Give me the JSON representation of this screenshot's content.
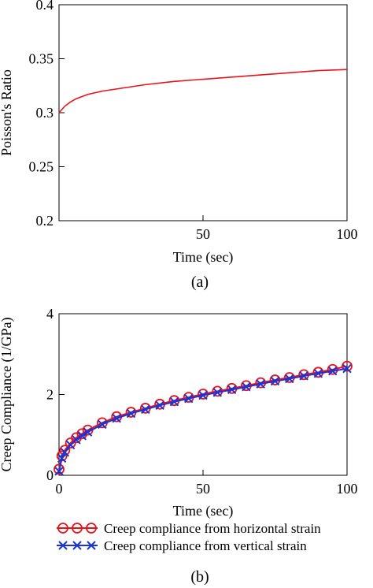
{
  "chart_data": [
    {
      "type": "line",
      "caption": "(a)",
      "xlabel": "Time (sec)",
      "ylabel": "Poisson's Ratio",
      "xlim": [
        0,
        100
      ],
      "ylim": [
        0.2,
        0.4
      ],
      "xticks": [
        {
          "value": 50,
          "label": "50"
        },
        {
          "value": 100,
          "label": "100"
        }
      ],
      "yticks": [
        {
          "value": 0.2,
          "label": "0.2"
        },
        {
          "value": 0.25,
          "label": "0.25"
        },
        {
          "value": 0.3,
          "label": "0.3"
        },
        {
          "value": 0.35,
          "label": "0.35"
        },
        {
          "value": 0.4,
          "label": "0.4"
        }
      ],
      "grid": false,
      "series": [
        {
          "color": "#e8131b",
          "x": [
            0,
            1,
            2,
            3,
            4,
            6,
            8,
            10,
            15,
            20,
            25,
            30,
            40,
            50,
            60,
            70,
            80,
            90,
            100
          ],
          "y": [
            0.3,
            0.303,
            0.306,
            0.308,
            0.31,
            0.313,
            0.315,
            0.317,
            0.32,
            0.322,
            0.324,
            0.326,
            0.329,
            0.331,
            0.333,
            0.335,
            0.337,
            0.339,
            0.34
          ]
        }
      ]
    },
    {
      "type": "line",
      "caption": "(b)",
      "xlabel": "Time (sec)",
      "ylabel": "Creep Compliance (1/GPa)",
      "xlim": [
        0,
        100
      ],
      "ylim": [
        0,
        4
      ],
      "xticks": [
        {
          "value": 0,
          "label": "0"
        },
        {
          "value": 50,
          "label": "50"
        },
        {
          "value": 100,
          "label": "100"
        }
      ],
      "yticks": [
        {
          "value": 0,
          "label": "0"
        },
        {
          "value": 2,
          "label": "2"
        },
        {
          "value": 4,
          "label": "4"
        }
      ],
      "grid": false,
      "legend_position": "bottom",
      "series": [
        {
          "name": "Creep compliance from horizontal strain",
          "color": "#e8131b",
          "marker": "circle",
          "x": [
            0,
            1,
            2,
            4,
            6,
            8,
            10,
            15,
            20,
            25,
            30,
            35,
            40,
            45,
            50,
            55,
            60,
            65,
            70,
            75,
            80,
            85,
            90,
            95,
            100
          ],
          "y": [
            0.15,
            0.48,
            0.62,
            0.8,
            0.93,
            1.03,
            1.12,
            1.3,
            1.45,
            1.56,
            1.66,
            1.76,
            1.85,
            1.93,
            2.01,
            2.08,
            2.15,
            2.22,
            2.29,
            2.36,
            2.42,
            2.49,
            2.55,
            2.62,
            2.7
          ]
        },
        {
          "name": "Creep compliance from vertical strain",
          "color": "#1a33d6",
          "marker": "x",
          "x": [
            0,
            1,
            2,
            4,
            6,
            8,
            10,
            15,
            20,
            25,
            30,
            35,
            40,
            45,
            50,
            55,
            60,
            65,
            70,
            75,
            80,
            85,
            90,
            95,
            100
          ],
          "y": [
            0.1,
            0.42,
            0.57,
            0.75,
            0.88,
            0.98,
            1.07,
            1.26,
            1.41,
            1.53,
            1.63,
            1.73,
            1.82,
            1.9,
            1.98,
            2.05,
            2.12,
            2.19,
            2.26,
            2.33,
            2.39,
            2.46,
            2.52,
            2.58,
            2.64
          ]
        }
      ]
    }
  ]
}
